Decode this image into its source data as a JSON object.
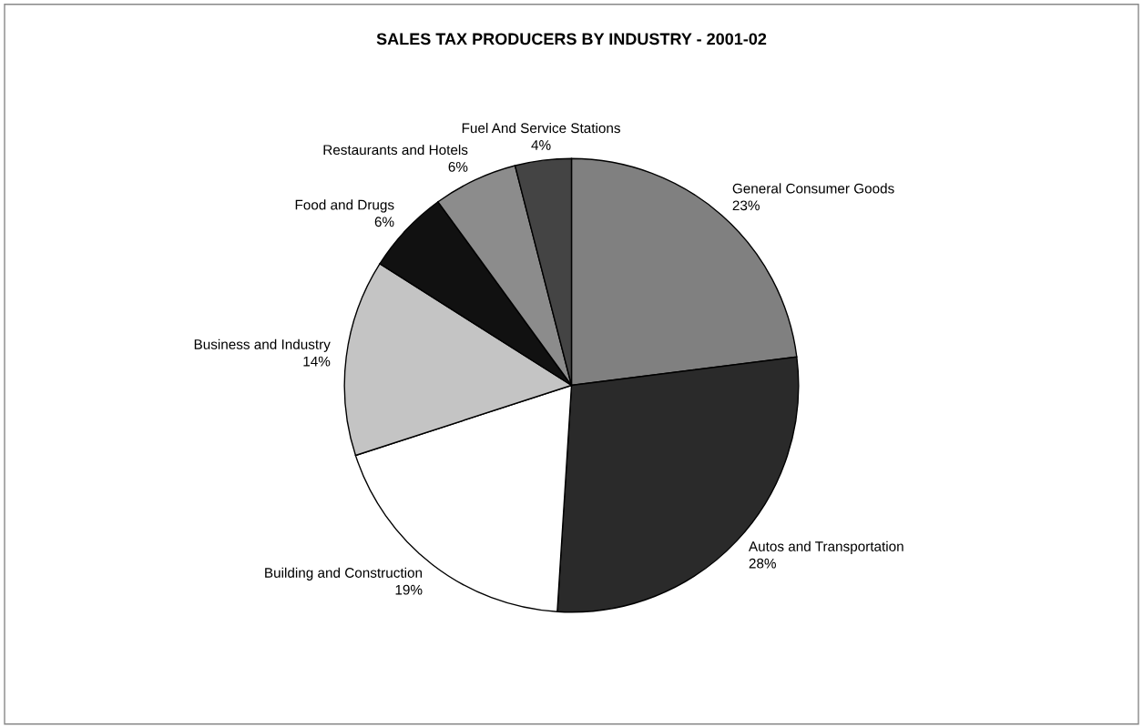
{
  "chart_data": {
    "type": "pie",
    "title": "SALES TAX PRODUCERS BY INDUSTRY - 2001-02",
    "categories": [
      "General Consumer Goods",
      "Autos and Transportation",
      "Building and Construction",
      "Business and Industry",
      "Food and Drugs",
      "Restaurants and Hotels",
      "Fuel And Service Stations"
    ],
    "values": [
      23,
      28,
      19,
      14,
      6,
      6,
      4
    ],
    "value_labels": [
      "23%",
      "28%",
      "19%",
      "14%",
      "6%",
      "6%",
      "4%"
    ],
    "colors": [
      "#808080",
      "#2a2a2a",
      "#ffffff",
      "#c4c4c4",
      "#111111",
      "#8c8c8c",
      "#444444"
    ],
    "legend": false
  }
}
